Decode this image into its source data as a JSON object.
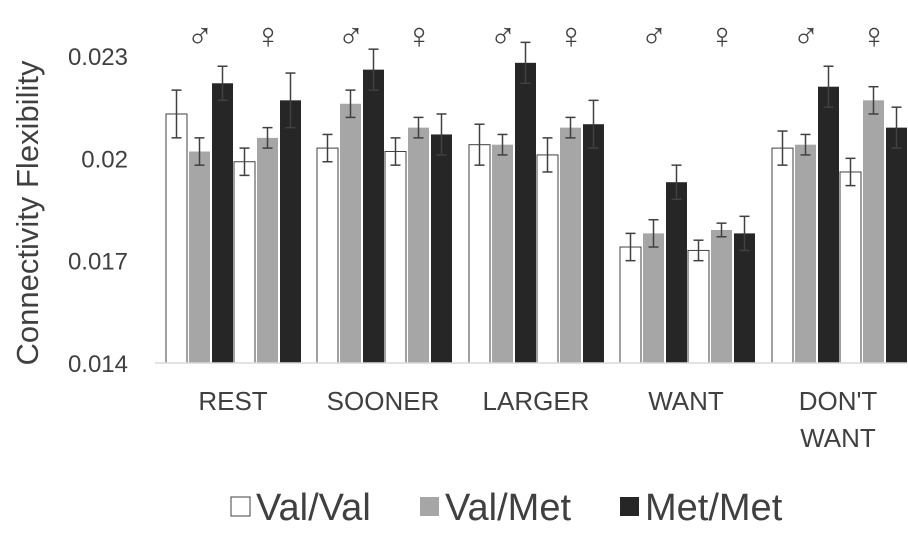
{
  "chart_data": {
    "type": "bar",
    "title": "",
    "xlabel": "",
    "ylabel": "Connectivity Flexibility",
    "ylim": [
      0.014,
      0.024
    ],
    "yticks": [
      "0.014",
      "0.017",
      "0.02",
      "0.023"
    ],
    "ytick_values": [
      0.014,
      0.017,
      0.02,
      0.023
    ],
    "grid": false,
    "legend_position": "bottom",
    "categories": [
      {
        "label_lines": [
          "REST"
        ]
      },
      {
        "label_lines": [
          "SOONER"
        ]
      },
      {
        "label_lines": [
          "LARGER"
        ]
      },
      {
        "label_lines": [
          "WANT"
        ]
      },
      {
        "label_lines": [
          "DON'T",
          "WANT"
        ]
      }
    ],
    "sex_symbols": [
      "♂",
      "♀"
    ],
    "series": [
      {
        "name": "Val/Val",
        "color": "#ffffff"
      },
      {
        "name": "Val/Met",
        "color": "#a6a6a6"
      },
      {
        "name": "Met/Met",
        "color": "#262626"
      }
    ],
    "values": [
      [
        [
          0.0213,
          0.0202,
          0.0222
        ],
        [
          0.0199,
          0.0206,
          0.0217
        ]
      ],
      [
        [
          0.0203,
          0.0216,
          0.0226
        ],
        [
          0.0202,
          0.0209,
          0.0207
        ]
      ],
      [
        [
          0.0204,
          0.0204,
          0.0228
        ],
        [
          0.0201,
          0.0209,
          0.021
        ]
      ],
      [
        [
          0.0174,
          0.0178,
          0.0193
        ],
        [
          0.0173,
          0.0179,
          0.0178
        ]
      ],
      [
        [
          0.0203,
          0.0204,
          0.0221
        ],
        [
          0.0196,
          0.0217,
          0.0209
        ]
      ]
    ],
    "errors": [
      [
        [
          0.0007,
          0.0004,
          0.0005
        ],
        [
          0.0004,
          0.0003,
          0.0008
        ]
      ],
      [
        [
          0.0004,
          0.0004,
          0.0006
        ],
        [
          0.0004,
          0.0003,
          0.0006
        ]
      ],
      [
        [
          0.0006,
          0.0003,
          0.0006
        ],
        [
          0.0005,
          0.0003,
          0.0007
        ]
      ],
      [
        [
          0.0004,
          0.0004,
          0.0005
        ],
        [
          0.0003,
          0.0002,
          0.0005
        ]
      ],
      [
        [
          0.0005,
          0.0003,
          0.0006
        ],
        [
          0.0004,
          0.0004,
          0.0006
        ]
      ]
    ]
  }
}
